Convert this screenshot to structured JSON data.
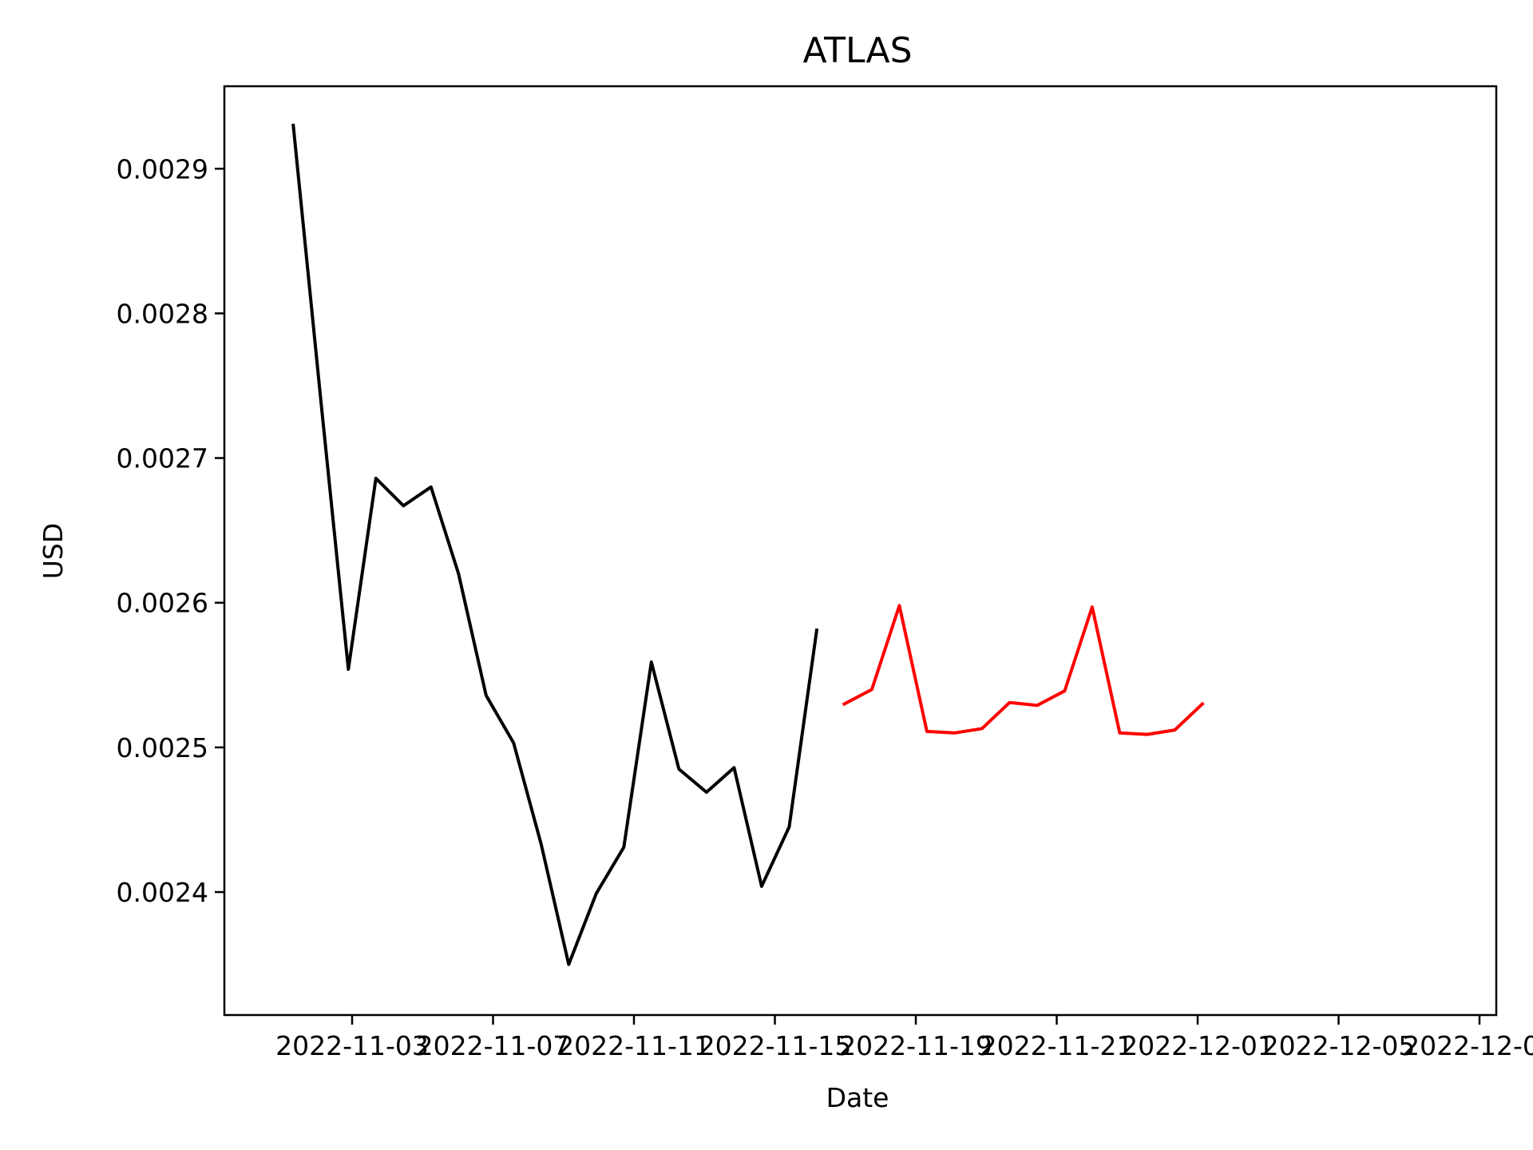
{
  "chart_data": {
    "type": "line",
    "title": "ATLAS",
    "xlabel": "Date",
    "ylabel": "USD",
    "xlim": [
      "2022-10-29T12:00",
      "2022-12-14T16:00"
    ],
    "ylim": [
      0.002315,
      0.002957
    ],
    "x_ticks": [
      "2022-11-03",
      "2022-11-07",
      "2022-11-11",
      "2022-11-15",
      "2022-11-19",
      "2022-11-21",
      "2022-12-01",
      "2022-12-05",
      "2022-12-09",
      "2022-12-13"
    ],
    "y_ticks": [
      0.0024,
      0.0025,
      0.0026,
      0.0027,
      0.0028,
      0.0029
    ],
    "grid": false,
    "series": [
      {
        "color": "#000000",
        "points": [
          {
            "x": "2022-11-01",
            "y": 0.00293
          },
          {
            "x": "2022-11-02",
            "y": 0.00274
          },
          {
            "x": "2022-11-03",
            "y": 0.002554
          },
          {
            "x": "2022-11-04",
            "y": 0.002686
          },
          {
            "x": "2022-11-05",
            "y": 0.002667
          },
          {
            "x": "2022-11-06",
            "y": 0.00268
          },
          {
            "x": "2022-11-07",
            "y": 0.00262
          },
          {
            "x": "2022-11-08",
            "y": 0.002536
          },
          {
            "x": "2022-11-09",
            "y": 0.002503
          },
          {
            "x": "2022-11-10",
            "y": 0.002433
          },
          {
            "x": "2022-11-11",
            "y": 0.00235
          },
          {
            "x": "2022-11-12",
            "y": 0.002399
          },
          {
            "x": "2022-11-13",
            "y": 0.002431
          },
          {
            "x": "2022-11-14",
            "y": 0.002559
          },
          {
            "x": "2022-11-15",
            "y": 0.002485
          },
          {
            "x": "2022-11-16",
            "y": 0.002469
          },
          {
            "x": "2022-11-17",
            "y": 0.002486
          },
          {
            "x": "2022-11-18",
            "y": 0.002404
          },
          {
            "x": "2022-11-19",
            "y": 0.002445
          },
          {
            "x": "2022-11-20",
            "y": 0.002581
          }
        ]
      },
      {
        "color": "#ff0000",
        "points": [
          {
            "x": "2022-11-21",
            "y": 0.00253
          },
          {
            "x": "2022-11-22",
            "y": 0.00254
          },
          {
            "x": "2022-11-23",
            "y": 0.002598
          },
          {
            "x": "2022-11-24",
            "y": 0.002511
          },
          {
            "x": "2022-11-25",
            "y": 0.00251
          },
          {
            "x": "2022-11-26",
            "y": 0.002513
          },
          {
            "x": "2022-11-27",
            "y": 0.002531
          },
          {
            "x": "2022-11-28",
            "y": 0.002529
          },
          {
            "x": "2022-11-29",
            "y": 0.002539
          },
          {
            "x": "2022-11-30",
            "y": 0.002597
          },
          {
            "x": "2022-12-01",
            "y": 0.00251
          },
          {
            "x": "2022-12-02",
            "y": 0.002509
          },
          {
            "x": "2022-12-03",
            "y": 0.002512
          },
          {
            "x": "2022-12-04",
            "y": 0.00253
          }
        ]
      }
    ]
  }
}
